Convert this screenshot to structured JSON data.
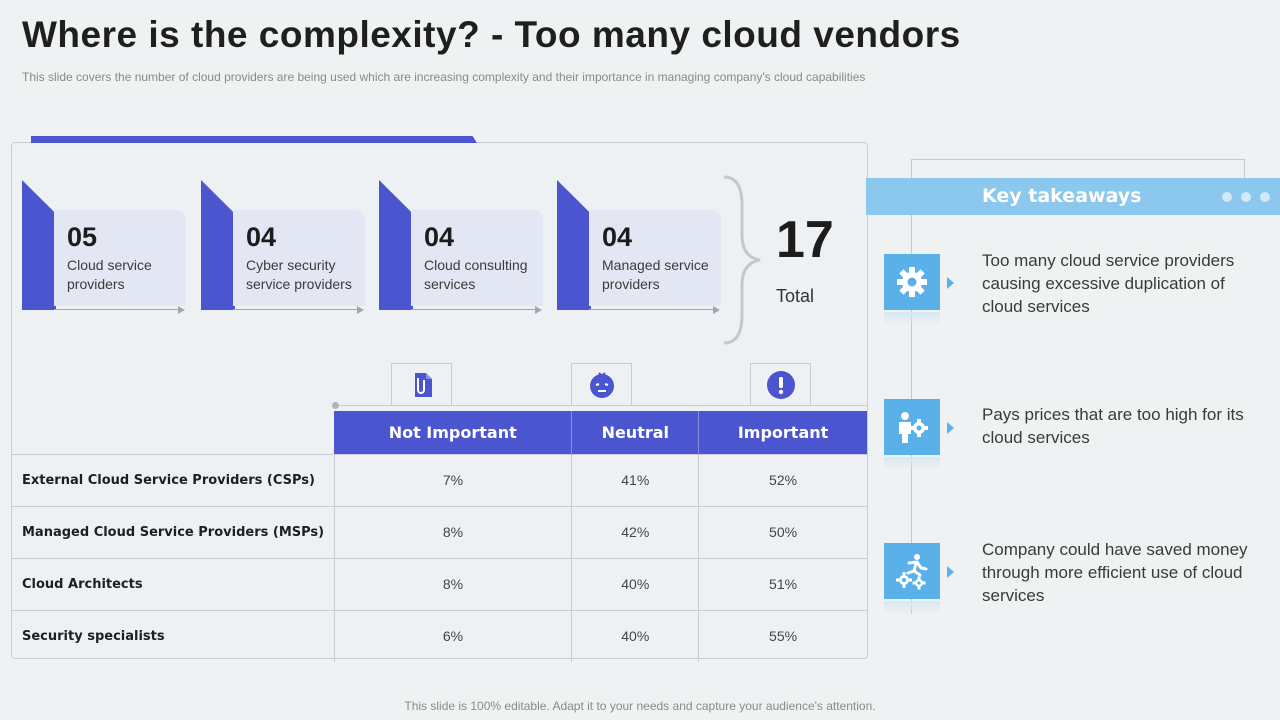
{
  "title": "Where is the complexity? - Too many cloud vendors",
  "subtitle": "This slide covers the number of cloud providers  are being used which are increasing complexity and their importance in managing company's cloud capabilities",
  "stats": [
    {
      "num": "05",
      "label": "Cloud service providers"
    },
    {
      "num": "04",
      "label": "Cyber security service providers"
    },
    {
      "num": "04",
      "label": "Cloud consulting services"
    },
    {
      "num": "04",
      "label": "Managed service providers"
    }
  ],
  "total": {
    "num": "17",
    "label": "Total"
  },
  "table": {
    "headers": [
      "Not Important",
      "Neutral",
      "Important"
    ],
    "header_icons": [
      "document-clip-icon",
      "neutral-face-icon",
      "exclamation-icon"
    ],
    "rows": [
      {
        "label": "External Cloud Service Providers (CSPs)",
        "values": [
          "7%",
          "41%",
          "52%"
        ]
      },
      {
        "label": "Managed Cloud Service Providers (MSPs)",
        "values": [
          "8%",
          "42%",
          "50%"
        ]
      },
      {
        "label": "Cloud Architects",
        "values": [
          "8%",
          "40%",
          "51%"
        ]
      },
      {
        "label": "Security specialists",
        "values": [
          "6%",
          "40%",
          "55%"
        ]
      }
    ]
  },
  "takeaways": {
    "title": "Key takeaways",
    "items": [
      {
        "icon": "gear-icon",
        "text": "Too many cloud service providers causing excessive duplication of cloud services"
      },
      {
        "icon": "person-gear-icon",
        "text": "Pays prices that are too high for its cloud services"
      },
      {
        "icon": "runner-gears-icon",
        "text": "Company could have saved money through more efficient use of cloud services"
      }
    ]
  },
  "footer": "This slide is 100% editable. Adapt it to your needs and capture your audience's attention.",
  "colors": {
    "accent": "#4a55cf",
    "takeaway_blue": "#5ab0e8",
    "background": "#eff2f2"
  }
}
